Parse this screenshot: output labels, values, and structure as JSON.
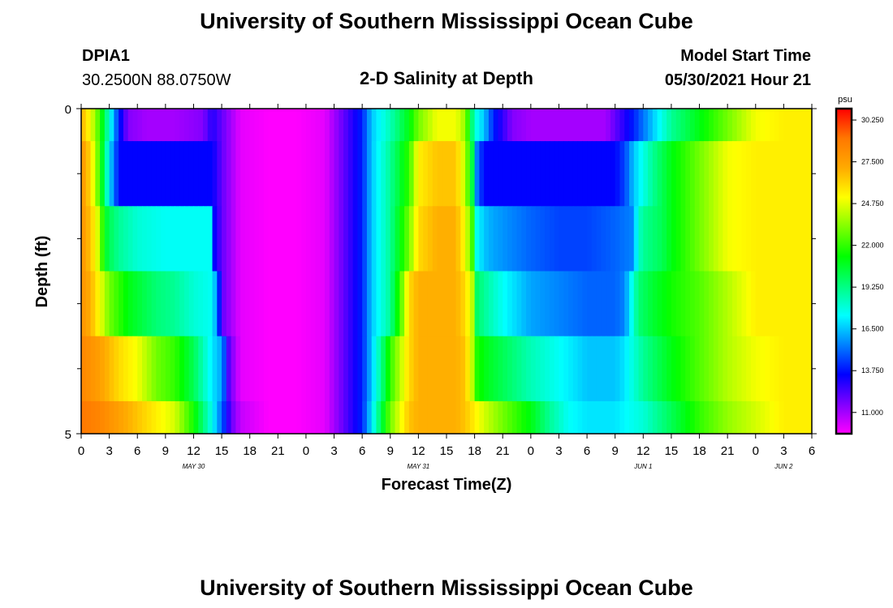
{
  "page": {
    "title": "University of Southern Mississippi Ocean Cube",
    "footer_title": "University of Southern Mississippi Ocean Cube",
    "station_id": "DPIA1",
    "station_coords": "30.2500N  88.0750W",
    "plot_title": "2-D Salinity at Depth",
    "model_start_label": "Model Start Time",
    "model_start_value": "05/30/2021 Hour 21"
  },
  "chart_data": {
    "type": "heatmap",
    "title": "2-D Salinity at Depth",
    "xlabel": "Forecast Time(Z)",
    "ylabel": "Depth (ft)",
    "x_unit": "hours from 05/30 00Z",
    "xlim": [
      0,
      78
    ],
    "ylim": [
      0,
      5
    ],
    "y_inverted": true,
    "y_tick_labels": [
      {
        "value": 0,
        "label": "0"
      },
      {
        "value": 5,
        "label": "5"
      }
    ],
    "y_minor_ticks": [
      1,
      2,
      3,
      4
    ],
    "x_tick_values": [
      0,
      3,
      6,
      9,
      12,
      15,
      18,
      21,
      24,
      27,
      30,
      33,
      36,
      39,
      42,
      45,
      48,
      51,
      54,
      57,
      60,
      63,
      66,
      69,
      72,
      75,
      78
    ],
    "x_tick_labels": [
      "0",
      "3",
      "6",
      "9",
      "12",
      "15",
      "18",
      "21",
      "0",
      "3",
      "6",
      "9",
      "12",
      "15",
      "18",
      "21",
      "0",
      "3",
      "6",
      "9",
      "12",
      "15",
      "18",
      "21",
      "0",
      "3",
      "6"
    ],
    "date_labels": [
      {
        "x": 12,
        "label": "MAY 30"
      },
      {
        "x": 36,
        "label": "MAY 31"
      },
      {
        "x": 60,
        "label": "JUN 1"
      },
      {
        "x": 75,
        "label": "JUN 2"
      }
    ],
    "colorbar": {
      "unit": "psu",
      "vmin": 9.6,
      "vmax": 31.0,
      "tick_values": [
        30.25,
        27.5,
        24.75,
        22.0,
        19.25,
        16.5,
        13.75,
        11.0
      ],
      "tick_labels": [
        "30.250",
        "27.500",
        "24.750",
        "22.000",
        "19.250",
        "16.500",
        "13.750",
        "11.000"
      ],
      "colors": [
        "#ff00ff",
        "#8000ff",
        "#0000ff",
        "#0080ff",
        "#00ffff",
        "#00ff80",
        "#00ff00",
        "#80ff00",
        "#ffff00",
        "#ffaa00",
        "#ff7700",
        "#ff0000"
      ]
    },
    "depth_layers": [
      {
        "depth_range": [
          0,
          0.5
        ],
        "times": [
          0,
          1,
          2,
          3,
          4,
          5,
          7,
          10,
          13,
          14,
          15,
          17,
          20,
          23,
          26,
          28,
          30,
          31,
          33,
          35,
          36,
          38,
          40,
          41,
          42,
          43,
          44,
          46,
          48,
          51,
          54,
          56,
          57,
          59,
          61,
          63,
          66,
          69,
          72,
          75,
          78
        ],
        "values": [
          27,
          25,
          22,
          18,
          14,
          11.5,
          11,
          11,
          11.5,
          13,
          12,
          10,
          9.6,
          9.6,
          10,
          12,
          14,
          16.5,
          18.5,
          21,
          23,
          25,
          25,
          23.5,
          18,
          16.5,
          14,
          11.5,
          11,
          11,
          11,
          11,
          12,
          14,
          16.5,
          19,
          21,
          23,
          25,
          25.5,
          25.5
        ]
      },
      {
        "depth_range": [
          0.5,
          1.5
        ],
        "times": [
          0,
          1,
          2,
          3,
          3.6,
          4,
          6,
          10,
          13,
          14,
          15,
          17,
          20,
          23,
          26,
          28,
          30,
          31,
          33,
          35,
          36,
          38,
          40,
          41,
          41.8,
          42,
          43,
          44,
          46,
          48,
          51,
          54,
          57,
          58,
          59,
          61,
          63,
          66,
          69,
          72,
          75,
          78
        ],
        "values": [
          28,
          26,
          22,
          17,
          15,
          13.5,
          13.5,
          13.5,
          13.5,
          13.5,
          12,
          10,
          9.6,
          9.6,
          10,
          12,
          14,
          16.5,
          19,
          22,
          25.5,
          26.5,
          26.5,
          24,
          20,
          16,
          13.5,
          13.5,
          13.5,
          13.5,
          13.5,
          13.5,
          13.5,
          14.5,
          16.5,
          19,
          21,
          23,
          25,
          25.5,
          25.5,
          25.5
        ]
      },
      {
        "depth_range": [
          1.5,
          2.5
        ],
        "times": [
          0,
          1,
          2,
          2.4,
          3,
          4,
          6,
          9,
          12,
          14,
          14.2,
          15,
          17,
          20,
          23,
          26,
          28,
          30,
          31,
          33,
          35,
          36,
          38,
          40,
          41,
          41.8,
          42,
          43,
          44,
          46,
          48,
          51,
          54,
          57,
          59,
          59.4,
          60,
          62,
          63,
          66,
          69,
          72,
          75,
          78
        ],
        "values": [
          28,
          26.5,
          24,
          21,
          20,
          19,
          18,
          17.5,
          17.5,
          17.5,
          13.5,
          12,
          10,
          9.6,
          9.6,
          10,
          12,
          14,
          16.5,
          19,
          23,
          26,
          27,
          27,
          25,
          22,
          18,
          16.5,
          16,
          15.5,
          15,
          14.5,
          14.5,
          15,
          15.5,
          18,
          19,
          20,
          21,
          23,
          25,
          25.5,
          25.5,
          25.5
        ]
      },
      {
        "depth_range": [
          2.5,
          3.5
        ],
        "times": [
          0,
          1,
          2,
          3,
          5,
          8,
          10,
          12,
          14,
          14.6,
          15,
          17,
          20,
          23,
          26,
          28,
          30,
          31,
          33,
          34,
          35,
          36,
          38,
          40,
          41,
          41.8,
          42,
          43,
          45,
          48,
          51,
          54,
          57,
          58,
          59.5,
          61,
          63,
          66,
          69,
          72,
          75,
          78
        ],
        "values": [
          28,
          27,
          25,
          23,
          21,
          19.5,
          19,
          18,
          17.5,
          15,
          12,
          10,
          9.6,
          9.6,
          10,
          12,
          14,
          16.5,
          19,
          22,
          26,
          27,
          27,
          27,
          26,
          24,
          20,
          19,
          17.5,
          16,
          15.5,
          15,
          15,
          15.5,
          19.5,
          20.5,
          21.5,
          22.5,
          24,
          25.5,
          25.5,
          25.5
        ]
      },
      {
        "depth_range": [
          3.5,
          4.5
        ],
        "times": [
          0,
          2,
          4,
          6,
          8,
          10,
          12,
          13,
          14,
          15,
          15.8,
          17,
          20,
          23,
          26,
          28,
          30,
          31,
          32,
          33,
          34,
          35,
          36,
          38,
          40,
          41,
          41.8,
          42,
          43,
          45,
          48,
          51,
          54,
          57,
          58,
          60,
          63,
          66,
          69,
          72,
          75,
          78
        ],
        "values": [
          28.5,
          27.5,
          26,
          25,
          23,
          22,
          20,
          18.5,
          17,
          16,
          12,
          10,
          9.6,
          9.6,
          10,
          12,
          14,
          16.5,
          19,
          22,
          24,
          26,
          27,
          27,
          27,
          26.5,
          24,
          22,
          21,
          20,
          18.5,
          17.5,
          16.5,
          16.5,
          17,
          19,
          21,
          22.5,
          24,
          25,
          25.5,
          25.5
        ]
      },
      {
        "depth_range": [
          4.5,
          5
        ],
        "times": [
          0,
          2,
          4,
          6,
          8,
          10,
          11,
          12,
          13,
          14,
          15,
          16,
          17,
          20,
          23,
          26,
          28,
          30,
          31,
          32,
          33,
          35,
          36,
          38,
          40,
          41,
          42,
          43,
          45,
          48,
          50,
          52,
          54,
          57,
          60,
          63,
          66,
          69,
          72,
          75,
          78
        ],
        "values": [
          29,
          28.5,
          27.5,
          26.5,
          25.5,
          24.5,
          23,
          21.5,
          19.5,
          17.5,
          15,
          12,
          10.5,
          9.6,
          9.6,
          10,
          12,
          14,
          17,
          20,
          23,
          26.5,
          27,
          27,
          27,
          26.5,
          25.5,
          24.5,
          23,
          21,
          19,
          17.5,
          17,
          17,
          18,
          20,
          22,
          23.5,
          24.5,
          25.5,
          25.5
        ]
      }
    ]
  }
}
